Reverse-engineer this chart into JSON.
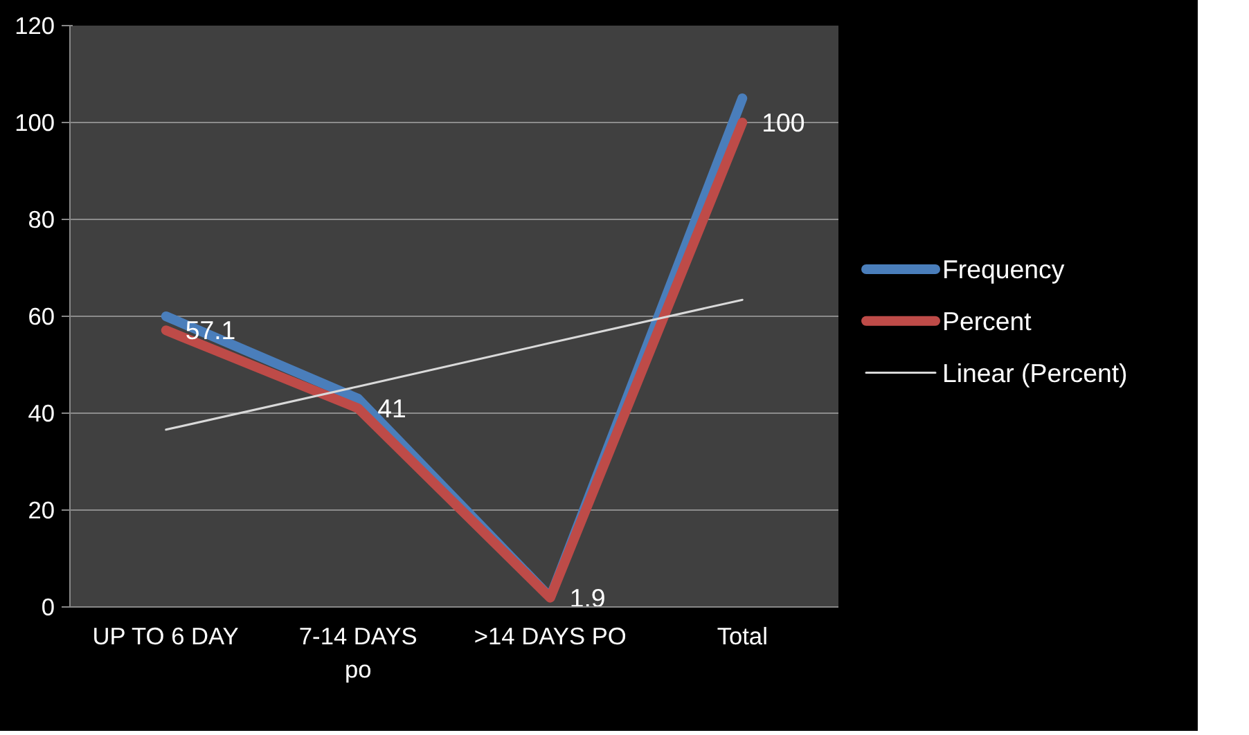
{
  "chart_data": {
    "type": "line",
    "categories": [
      "UP TO 6 DAY",
      "7-14 DAYS po",
      ">14 DAYS PO",
      "Total"
    ],
    "series": [
      {
        "name": "Frequency",
        "color": "#4a7ebb",
        "values": [
          60,
          43,
          2,
          105
        ]
      },
      {
        "name": "Percent",
        "color": "#be4b48",
        "values": [
          57.1,
          41,
          1.9,
          100
        ],
        "value_labels": [
          "57.1",
          "41",
          "1.9",
          "100"
        ]
      },
      {
        "name": "Linear (Percent)",
        "color": "#d9d9d9",
        "values": [
          36.6,
          45.5,
          54.5,
          63.4
        ]
      }
    ],
    "ylim": [
      0,
      120
    ],
    "yticks": [
      0,
      20,
      40,
      60,
      80,
      100,
      120
    ],
    "grid": "y",
    "legend": "right",
    "line_style": "solid",
    "marker": "none"
  }
}
